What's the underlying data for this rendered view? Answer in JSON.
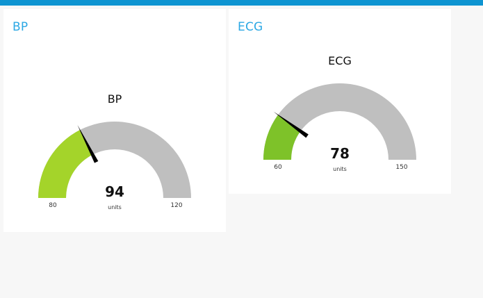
{
  "widgets": [
    {
      "id": "bp",
      "card_title": "BP",
      "gauge_title": "BP",
      "value": 94,
      "value_text": "94",
      "min": 80,
      "min_text": "80",
      "max": 120,
      "max_text": "120",
      "units": "units",
      "fill_color": "#a4d42a",
      "track_color": "#bfbfbf",
      "needle_color": "#000000"
    },
    {
      "id": "ecg",
      "card_title": "ECG",
      "gauge_title": "ECG",
      "value": 78,
      "value_text": "78",
      "min": 60,
      "min_text": "60",
      "max": 150,
      "max_text": "150",
      "units": "units",
      "fill_color": "#7ec229",
      "track_color": "#bfbfbf",
      "needle_color": "#000000"
    }
  ],
  "colors": {
    "topbar": "#0e94d1",
    "card_title": "#2ca8e4",
    "page_background": "#f7f7f7",
    "card_background": "#ffffff"
  }
}
